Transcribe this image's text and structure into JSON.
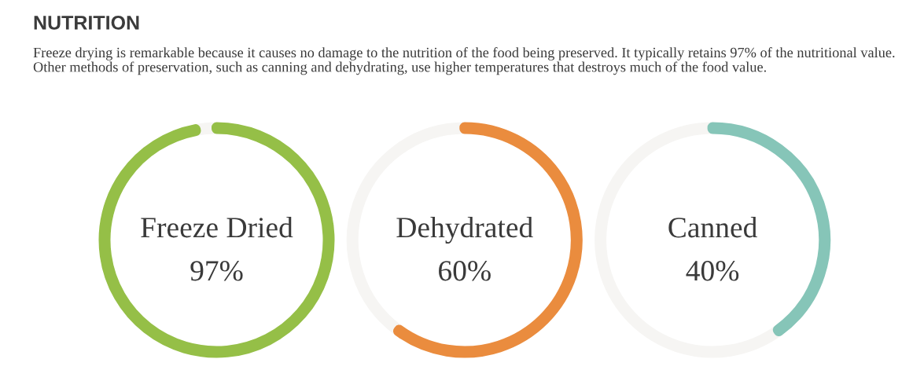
{
  "chart_data": [
    {
      "type": "donut",
      "title": "NUTRITION",
      "subtitle": "Freeze drying is remarkable because it causes no damage to the nutrition of the food being preserved. It typically retains 97% of the nutritional value.\nOther methods of preservation, such as canning and dehydrating, use higher temperatures that destroys much of the food value.",
      "categories": [
        "Freeze Dried",
        null
      ],
      "values": [
        97,
        3
      ],
      "colors": [
        "#95bf47",
        "#f6f5f3"
      ],
      "value_labels": [
        "97%",
        null
      ]
    },
    {
      "type": "donut",
      "categories": [
        "Dehydrated",
        null
      ],
      "values": [
        60,
        40
      ],
      "colors": [
        "#ea8c3e",
        "#f6f5f3"
      ],
      "value_labels": [
        "60%",
        null
      ]
    },
    {
      "type": "donut",
      "categories": [
        "Canned",
        null
      ],
      "values": [
        40,
        60
      ],
      "colors": [
        "#86c5b8",
        "#f6f5f3"
      ],
      "value_labels": [
        "40%",
        null
      ]
    }
  ]
}
